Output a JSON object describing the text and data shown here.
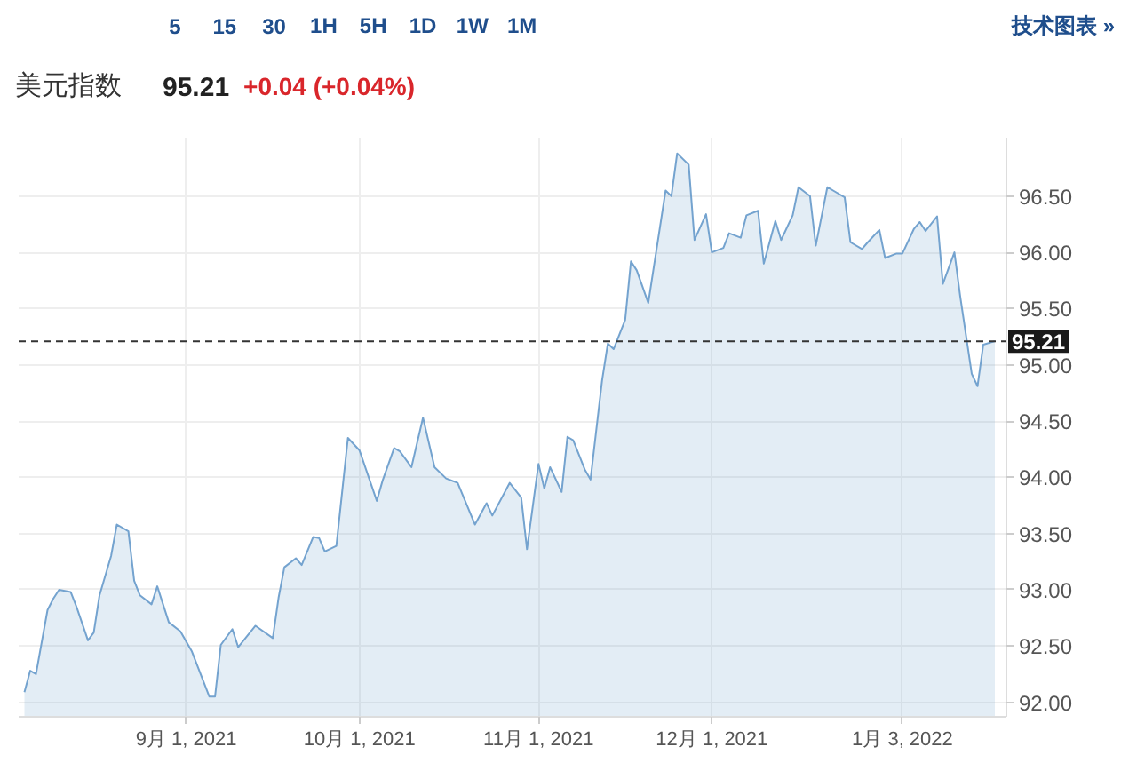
{
  "chart_data": {
    "type": "area",
    "title": "美元指数",
    "subtitle": "95.21 +0.04 (+0.04%)",
    "annotations": [
      "5",
      "15",
      "30",
      "1H",
      "5H",
      "1D",
      "1W",
      "1M",
      "技术图表 »"
    ],
    "x": [
      "2021-08-04",
      "2021-08-05",
      "2021-08-06",
      "2021-08-08",
      "2021-08-09",
      "2021-08-10",
      "2021-08-12",
      "2021-08-13",
      "2021-08-15",
      "2021-08-16",
      "2021-08-17",
      "2021-08-19",
      "2021-08-20",
      "2021-08-22",
      "2021-08-23",
      "2021-08-24",
      "2021-08-26",
      "2021-08-27",
      "2021-08-29",
      "2021-08-31",
      "2021-09-02",
      "2021-09-05",
      "2021-09-06",
      "2021-09-07",
      "2021-09-09",
      "2021-09-10",
      "2021-09-13",
      "2021-09-16",
      "2021-09-17",
      "2021-09-18",
      "2021-09-20",
      "2021-09-21",
      "2021-09-23",
      "2021-09-24",
      "2021-09-25",
      "2021-09-27",
      "2021-09-29",
      "2021-10-01",
      "2021-10-04",
      "2021-10-05",
      "2021-10-07",
      "2021-10-08",
      "2021-10-10",
      "2021-10-12",
      "2021-10-14",
      "2021-10-16",
      "2021-10-18",
      "2021-10-21",
      "2021-10-23",
      "2021-10-24",
      "2021-10-27",
      "2021-10-29",
      "2021-10-30",
      "2021-11-01",
      "2021-11-02",
      "2021-11-03",
      "2021-11-05",
      "2021-11-06",
      "2021-11-07",
      "2021-11-09",
      "2021-11-10",
      "2021-11-12",
      "2021-11-13",
      "2021-11-14",
      "2021-11-16",
      "2021-11-17",
      "2021-11-18",
      "2021-11-20",
      "2021-11-23",
      "2021-11-24",
      "2021-11-25",
      "2021-11-27",
      "2021-11-28",
      "2021-11-30",
      "2021-12-01",
      "2021-12-03",
      "2021-12-04",
      "2021-12-06",
      "2021-12-07",
      "2021-12-09",
      "2021-12-10",
      "2021-12-12",
      "2021-12-13",
      "2021-12-15",
      "2021-12-16",
      "2021-12-18",
      "2021-12-19",
      "2021-12-21",
      "2021-12-22",
      "2021-12-24",
      "2021-12-25",
      "2021-12-27",
      "2021-12-28",
      "2021-12-30",
      "2021-12-31",
      "2022-01-02",
      "2022-01-03",
      "2022-01-05",
      "2022-01-06",
      "2022-01-07",
      "2022-01-09",
      "2022-01-10",
      "2022-01-12",
      "2022-01-13",
      "2022-01-15",
      "2022-01-16",
      "2022-01-17",
      "2022-01-19"
    ],
    "series": [
      {
        "color": "#74a3cf",
        "values": [
          92.09,
          92.28,
          92.25,
          92.82,
          92.92,
          93.0,
          92.98,
          92.85,
          92.55,
          92.62,
          92.95,
          93.3,
          93.58,
          93.52,
          93.08,
          92.95,
          92.87,
          93.03,
          92.71,
          92.63,
          92.45,
          92.05,
          92.05,
          92.51,
          92.65,
          92.49,
          92.68,
          92.57,
          92.93,
          93.2,
          93.28,
          93.22,
          93.47,
          93.46,
          93.34,
          93.39,
          94.35,
          94.24,
          93.79,
          93.97,
          94.26,
          94.23,
          94.09,
          94.53,
          94.09,
          93.99,
          93.95,
          93.58,
          93.77,
          93.66,
          93.95,
          93.82,
          93.36,
          94.12,
          93.9,
          94.09,
          93.87,
          94.36,
          94.33,
          94.07,
          93.98,
          94.86,
          95.19,
          95.14,
          95.4,
          95.92,
          95.84,
          95.55,
          96.55,
          96.5,
          96.88,
          96.78,
          96.11,
          96.34,
          96.0,
          96.04,
          96.17,
          96.13,
          96.33,
          96.37,
          95.9,
          96.28,
          96.11,
          96.33,
          96.58,
          96.5,
          96.06,
          96.58,
          96.55,
          96.49,
          96.09,
          96.03,
          96.09,
          96.2,
          95.95,
          95.99,
          95.99,
          96.21,
          96.27,
          96.19,
          96.32,
          95.72,
          96.0,
          95.61,
          94.92,
          94.81,
          95.18,
          95.21
        ]
      }
    ],
    "xlim": [
      "2021-08-03",
      "2022-01-21"
    ],
    "ylim": [
      91.87,
      97.02
    ],
    "xticks": [
      {
        "value": "2021-09-01",
        "label": "9月 1, 2021"
      },
      {
        "value": "2021-10-01",
        "label": "10月 1, 2021"
      },
      {
        "value": "2021-11-01",
        "label": "11月 1, 2021"
      },
      {
        "value": "2021-12-01",
        "label": "12月 1, 2021"
      },
      {
        "value": "2022-01-03",
        "label": "1月 3, 2022"
      }
    ],
    "yticks": [
      {
        "value": 92,
        "label": "92.00"
      },
      {
        "value": 92.5,
        "label": "92.50"
      },
      {
        "value": 93,
        "label": "93.00"
      },
      {
        "value": 93.5,
        "label": "93.50"
      },
      {
        "value": 94,
        "label": "94.00"
      },
      {
        "value": 94.5,
        "label": "94.50"
      },
      {
        "value": 95,
        "label": "95.00"
      },
      {
        "value": 95.5,
        "label": "95.50"
      },
      {
        "value": 96,
        "label": "96.00"
      },
      {
        "value": 96.5,
        "label": "96.50"
      }
    ],
    "ref_lines": [
      {
        "axis": "y",
        "value": 95.21,
        "label": "95.21",
        "color": "#333333",
        "line_style": "dashed"
      }
    ],
    "grid": true
  }
}
